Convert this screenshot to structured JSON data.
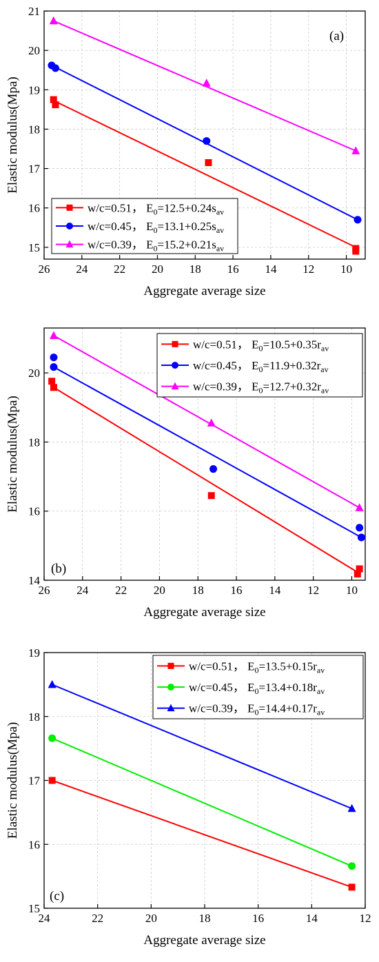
{
  "chart_data": [
    {
      "type": "scatter",
      "panel_label": "(a)",
      "xlabel": "Aggregate average size",
      "ylabel": "Elastic modulus(Mpa)",
      "xlim": [
        26,
        9
      ],
      "ylim": [
        14.7,
        21
      ],
      "xticks": [
        26,
        24,
        22,
        20,
        18,
        16,
        14,
        12,
        10
      ],
      "yticks": [
        15,
        16,
        17,
        18,
        19,
        20,
        21
      ],
      "grid": true,
      "legend_position": "bottom-left",
      "series": [
        {
          "name": "w/c=0.51",
          "equation": "E0=12.5+0.24sav",
          "eq_prefix": "E",
          "eq_sub0": "0",
          "eq_mid": "=12.5+0.24s",
          "eq_sub1": "av",
          "color": "#ff0000",
          "marker": "square",
          "points": [
            [
              25.5,
              18.75
            ],
            [
              25.4,
              18.62
            ],
            [
              17.3,
              17.15
            ],
            [
              9.5,
              14.97
            ],
            [
              9.5,
              14.9
            ]
          ],
          "fit": [
            [
              25.6,
              18.75
            ],
            [
              9.5,
              15.0
            ]
          ]
        },
        {
          "name": "w/c=0.45",
          "equation": "E0=13.1+0.25sav",
          "eq_prefix": "E",
          "eq_sub0": "0",
          "eq_mid": "=13.1+0.25s",
          "eq_sub1": "av",
          "color": "#0000ff",
          "marker": "circle",
          "points": [
            [
              25.6,
              19.62
            ],
            [
              25.4,
              19.55
            ],
            [
              17.4,
              17.7
            ],
            [
              9.4,
              15.7
            ]
          ],
          "fit": [
            [
              25.6,
              19.62
            ],
            [
              9.4,
              15.7
            ]
          ]
        },
        {
          "name": "w/c=0.39",
          "equation": "E0=15.2+0.21sav",
          "eq_prefix": "E",
          "eq_sub0": "0",
          "eq_mid": "=15.2+0.21s",
          "eq_sub1": "av",
          "color": "#ff00ff",
          "marker": "triangle",
          "points": [
            [
              25.5,
              20.75
            ],
            [
              17.4,
              19.17
            ],
            [
              9.5,
              17.45
            ]
          ],
          "fit": [
            [
              25.5,
              20.75
            ],
            [
              9.5,
              17.45
            ]
          ]
        }
      ]
    },
    {
      "type": "scatter",
      "panel_label": "(b)",
      "xlabel": "Aggregate average size",
      "ylabel": "Elastic modulus(Mpa)",
      "xlim": [
        26,
        9.3
      ],
      "ylim": [
        14,
        21.3
      ],
      "xticks": [
        26,
        24,
        22,
        20,
        18,
        16,
        14,
        12,
        10
      ],
      "yticks": [
        14,
        16,
        18,
        20
      ],
      "grid": true,
      "legend_position": "top-right",
      "series": [
        {
          "name": "w/c=0.51",
          "equation": "E0=10.5+0.35rav",
          "eq_prefix": "E",
          "eq_sub0": "0",
          "eq_mid": "=10.5+0.35r",
          "eq_sub1": "av",
          "color": "#ff0000",
          "marker": "square",
          "points": [
            [
              25.6,
              19.76
            ],
            [
              25.5,
              19.58
            ],
            [
              17.3,
              16.45
            ],
            [
              9.6,
              14.33
            ],
            [
              9.7,
              14.18
            ]
          ],
          "fit": [
            [
              25.5,
              19.58
            ],
            [
              9.6,
              14.2
            ]
          ]
        },
        {
          "name": "w/c=0.45",
          "equation": "E0=11.9+0.32rav",
          "eq_prefix": "E",
          "eq_sub0": "0",
          "eq_mid": "=11.9+0.32r",
          "eq_sub1": "av",
          "color": "#0000ff",
          "marker": "circle",
          "points": [
            [
              25.5,
              20.45
            ],
            [
              25.5,
              20.17
            ],
            [
              17.2,
              17.22
            ],
            [
              9.6,
              15.52
            ],
            [
              9.5,
              15.24
            ]
          ],
          "fit": [
            [
              25.5,
              20.17
            ],
            [
              9.5,
              15.24
            ]
          ]
        },
        {
          "name": "w/c=0.39",
          "equation": "E0=12.7+0.32rav",
          "eq_prefix": "E",
          "eq_sub0": "0",
          "eq_mid": "=12.7+0.32r",
          "eq_sub1": "av",
          "color": "#ff00ff",
          "marker": "triangle",
          "points": [
            [
              25.5,
              21.08
            ],
            [
              17.3,
              18.55
            ],
            [
              9.6,
              16.1
            ]
          ],
          "fit": [
            [
              25.5,
              21.08
            ],
            [
              9.6,
              16.1
            ]
          ]
        }
      ]
    },
    {
      "type": "scatter",
      "panel_label": "(c)",
      "xlabel": "Aggregate average size",
      "ylabel": "Elastic modulus(Mpa)",
      "xlim": [
        24,
        12
      ],
      "ylim": [
        15,
        19
      ],
      "xticks": [
        24,
        22,
        20,
        18,
        16,
        14,
        12
      ],
      "yticks": [
        15,
        16,
        17,
        18,
        19
      ],
      "grid": true,
      "legend_position": "top-right",
      "series": [
        {
          "name": "w/c=0.51",
          "equation": "E0=13.5+0.15rav",
          "eq_prefix": "E",
          "eq_sub0": "0",
          "eq_mid": "=13.5+0.15r",
          "eq_sub1": "av",
          "color": "#ff0000",
          "marker": "square",
          "points": [
            [
              23.7,
              17.0
            ],
            [
              12.5,
              15.33
            ]
          ],
          "fit": [
            [
              23.7,
              17.0
            ],
            [
              12.5,
              15.33
            ]
          ]
        },
        {
          "name": "w/c=0.45",
          "equation": "E0=13.4+0.18rav",
          "eq_prefix": "E",
          "eq_sub0": "0",
          "eq_mid": "=13.4+0.18r",
          "eq_sub1": "av",
          "color": "#00ee00",
          "marker": "circle",
          "points": [
            [
              23.7,
              17.66
            ],
            [
              12.5,
              15.66
            ]
          ],
          "fit": [
            [
              23.7,
              17.66
            ],
            [
              12.5,
              15.66
            ]
          ]
        },
        {
          "name": "w/c=0.39",
          "equation": "E0=14.4+0.17rav",
          "eq_prefix": "E",
          "eq_sub0": "0",
          "eq_mid": "=14.4+0.17r",
          "eq_sub1": "av",
          "color": "#0000ff",
          "marker": "triangle",
          "points": [
            [
              23.7,
              18.5
            ],
            [
              12.5,
              16.56
            ]
          ],
          "fit": [
            [
              23.7,
              18.5
            ],
            [
              12.5,
              16.56
            ]
          ]
        }
      ]
    }
  ]
}
